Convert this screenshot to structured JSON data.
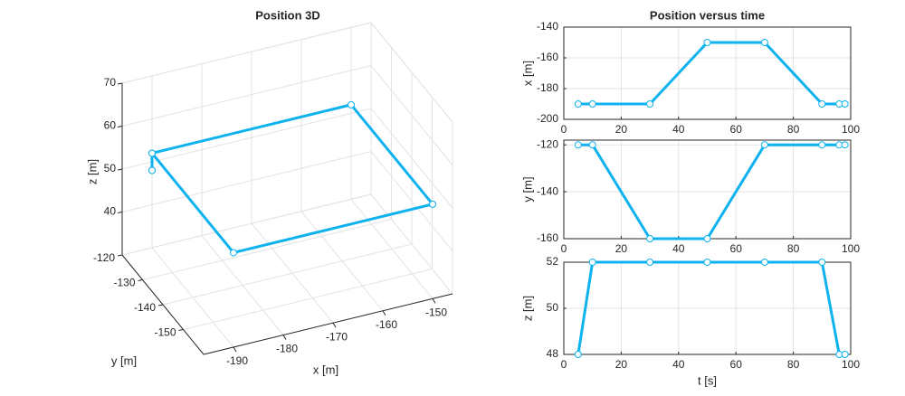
{
  "chart_data": [
    {
      "type": "line3d",
      "title": "Position 3D",
      "color": "#0db2ef",
      "x": [
        -190,
        -190,
        -190,
        -150,
        -150,
        -190,
        -190,
        -190
      ],
      "y": [
        -120,
        -120,
        -160,
        -160,
        -120,
        -120,
        -120,
        -120
      ],
      "z": [
        48,
        52,
        52,
        52,
        52,
        52,
        48,
        48
      ],
      "xlabel": "x [m]",
      "ylabel": "y [m]",
      "zlabel": "z [m]",
      "xlim": [
        -196,
        -146
      ],
      "ylim": [
        -160,
        -120
      ],
      "zlim": [
        30,
        70
      ],
      "xticks": [
        -190,
        -180,
        -170,
        -160,
        -150
      ],
      "yticks": [
        -150,
        -140,
        -130,
        -120
      ],
      "zticks": [
        40,
        50,
        60,
        70
      ],
      "grid": true
    },
    {
      "type": "line",
      "title": "Position versus time",
      "color": "#0db2ef",
      "ylabel": "x [m]",
      "x": [
        5,
        10,
        30,
        50,
        70,
        90,
        96,
        98
      ],
      "values": [
        -190,
        -190,
        -190,
        -150,
        -150,
        -190,
        -190,
        -190
      ],
      "xlim": [
        0,
        100
      ],
      "ylim": [
        -200,
        -140
      ],
      "xticks": [
        0,
        20,
        40,
        60,
        80,
        100
      ],
      "yticks": [
        -200,
        -180,
        -160,
        -140
      ],
      "grid": true
    },
    {
      "type": "line",
      "color": "#0db2ef",
      "ylabel": "y [m]",
      "x": [
        5,
        10,
        30,
        50,
        70,
        90,
        96,
        98
      ],
      "values": [
        -120,
        -120,
        -160,
        -160,
        -120,
        -120,
        -120,
        -120
      ],
      "xlim": [
        0,
        100
      ],
      "ylim": [
        -160,
        -118
      ],
      "xticks": [
        0,
        20,
        40,
        60,
        80,
        100
      ],
      "yticks": [
        -160,
        -140,
        -120
      ],
      "grid": true
    },
    {
      "type": "line",
      "color": "#0db2ef",
      "ylabel": "z [m]",
      "xlabel": "t [s]",
      "x": [
        5,
        10,
        30,
        50,
        70,
        90,
        96,
        98
      ],
      "values": [
        48,
        52,
        52,
        52,
        52,
        52,
        48,
        48
      ],
      "xlim": [
        0,
        100
      ],
      "ylim": [
        48,
        52
      ],
      "xticks": [
        0,
        20,
        40,
        60,
        80,
        100
      ],
      "yticks": [
        48,
        50,
        52
      ],
      "grid": true
    }
  ]
}
